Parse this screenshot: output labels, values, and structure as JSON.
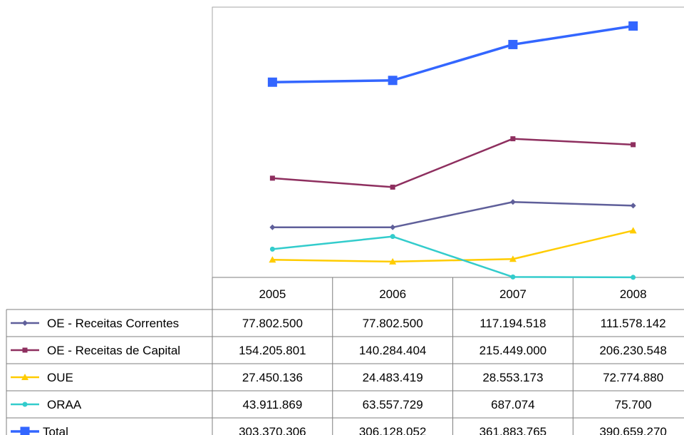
{
  "chart_data": {
    "type": "line",
    "categories": [
      "2005",
      "2006",
      "2007",
      "2008"
    ],
    "ylim": [
      0,
      420000000
    ],
    "grid": false,
    "legend": "data-table-left",
    "series": [
      {
        "name": "OE - Receitas Correntes",
        "values": [
          77802500,
          77802500,
          117194518,
          111578142
        ],
        "display": [
          "77.802.500",
          "77.802.500",
          "117.194.518",
          "111.578.142"
        ],
        "color": "#5f5f9a",
        "marker": "diamond"
      },
      {
        "name": "OE - Receitas de Capital",
        "values": [
          154205801,
          140284404,
          215449000,
          206230548
        ],
        "display": [
          "154.205.801",
          "140.284.404",
          "215.449.000",
          "206.230.548"
        ],
        "color": "#8e2f5f",
        "marker": "square"
      },
      {
        "name": "OUE",
        "values": [
          27450136,
          24483419,
          28553173,
          72774880
        ],
        "display": [
          "27.450.136",
          "24.483.419",
          "28.553.173",
          "72.774.880"
        ],
        "color": "#ffcc00",
        "marker": "triangle"
      },
      {
        "name": "ORAA",
        "values": [
          43911869,
          63557729,
          687074,
          75700
        ],
        "display": [
          "43.911.869",
          "63.557.729",
          "687.074",
          "75.700"
        ],
        "color": "#33cccc",
        "marker": "circle"
      },
      {
        "name": "Total",
        "values": [
          303370306,
          306128052,
          361883765,
          390659270
        ],
        "display": [
          "303.370.306",
          "306.128.052",
          "361.883.765",
          "390.659.270"
        ],
        "color": "#3366ff",
        "marker": "square-large"
      }
    ]
  }
}
